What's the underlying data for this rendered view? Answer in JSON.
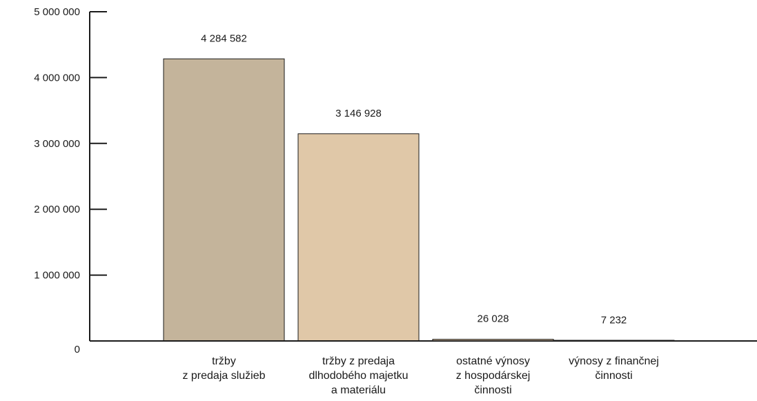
{
  "chart_data": {
    "type": "bar",
    "categories": [
      [
        "tržby",
        "z predaja služieb"
      ],
      [
        "tržby z predaja",
        "dlhodobého majetku",
        "a materiálu"
      ],
      [
        "ostatné výnosy",
        "z hospodárskej",
        "činnosti"
      ],
      [
        "výnosy z finančnej",
        "činnosti"
      ]
    ],
    "values": [
      4284582,
      3146928,
      26028,
      7232
    ],
    "value_labels": [
      "4 284 582",
      "3 146 928",
      "26 028",
      "7 232"
    ],
    "yticks": [
      0,
      1000000,
      2000000,
      3000000,
      4000000,
      5000000
    ],
    "ytick_labels": [
      "0",
      "1 000 000",
      "2 000 000",
      "3 000 000",
      "4 000 000",
      "5 000 000"
    ],
    "ylim": [
      0,
      5000000
    ],
    "title": "",
    "xlabel": "",
    "ylabel": "",
    "grid": false,
    "colors": [
      "#c4b49b",
      "#e0c8a8",
      "#e0c8a8",
      "#e0c8a8"
    ],
    "edge_color": "#1a1a1a"
  }
}
